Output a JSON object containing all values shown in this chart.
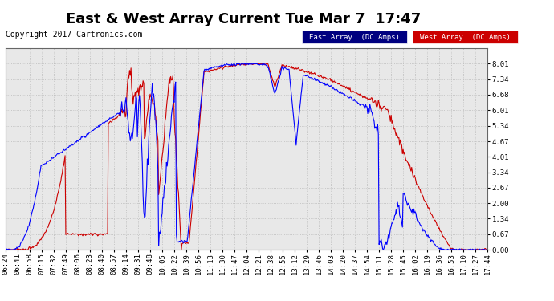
{
  "title": "East & West Array Current Tue Mar 7  17:47",
  "copyright": "Copyright 2017 Cartronics.com",
  "legend_east": "East Array  (DC Amps)",
  "legend_west": "West Array  (DC Amps)",
  "east_color": "#0000ff",
  "west_color": "#cc0000",
  "legend_east_bg": "#000080",
  "legend_west_bg": "#cc0000",
  "background_color": "#ffffff",
  "plot_bg_color": "#e8e8e8",
  "grid_color": "#bbbbbb",
  "ylim": [
    0.0,
    8.68
  ],
  "yticks": [
    0.0,
    0.67,
    1.34,
    2.0,
    2.67,
    3.34,
    4.01,
    4.67,
    5.34,
    6.01,
    6.68,
    7.34,
    8.01
  ],
  "title_fontsize": 13,
  "copyright_fontsize": 7,
  "tick_fontsize": 6.5,
  "line_width": 0.8
}
